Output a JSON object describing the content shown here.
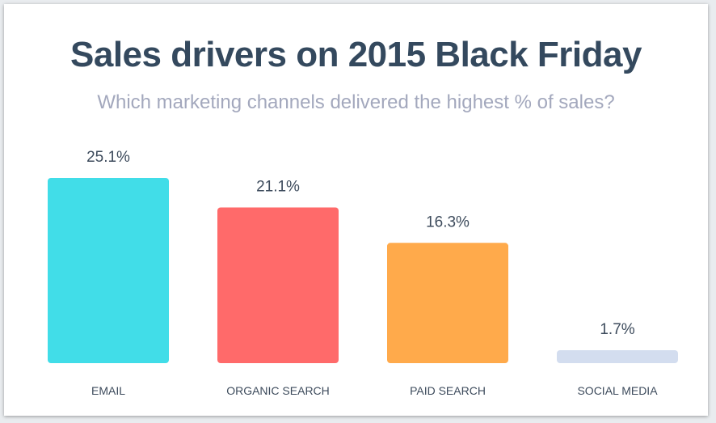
{
  "chart_data": {
    "type": "bar",
    "title": "Sales drivers on 2015 Black Friday",
    "subtitle": "Which marketing channels delivered the highest % of sales?",
    "categories": [
      "EMAIL",
      "ORGANIC SEARCH",
      "PAID SEARCH",
      "SOCIAL MEDIA"
    ],
    "values": [
      25.1,
      21.1,
      16.3,
      1.7
    ],
    "value_labels": [
      "25.1%",
      "21.1%",
      "16.3%",
      "1.7%"
    ],
    "colors": [
      "#41dde8",
      "#ff6a6a",
      "#ffaa4b",
      "#d3ddef"
    ],
    "ylim": [
      0,
      25.1
    ],
    "grid": false,
    "legend": "none",
    "axes_visible": false
  }
}
